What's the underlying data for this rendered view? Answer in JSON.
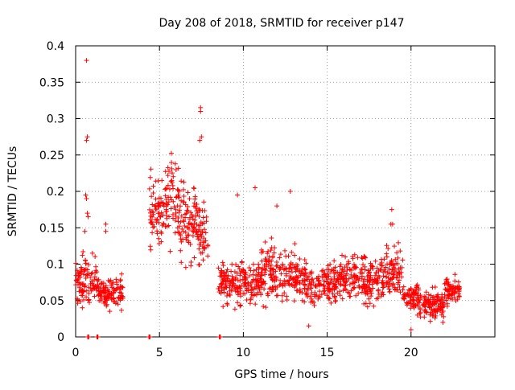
{
  "chart_data": {
    "type": "scatter",
    "title": "Day 208 of 2018, SRMTID for receiver p147",
    "xlabel": "GPS time / hours",
    "ylabel": "SRMTID / TECUs",
    "xlim": [
      0,
      25
    ],
    "ylim": [
      0,
      0.4
    ],
    "grid": true,
    "marker": "+",
    "color": "#ff0000",
    "x_ticks": [
      0,
      5,
      10,
      15,
      20
    ],
    "x_tick_labels": [
      "0",
      "5",
      "10",
      "15",
      "20"
    ],
    "y_ticks": [
      0,
      0.05,
      0.1,
      0.15,
      0.2,
      0.25,
      0.3,
      0.35,
      0.4
    ],
    "y_tick_labels": [
      "0",
      "0.05",
      "0.1",
      "0.15",
      "0.2",
      "0.25",
      "0.3",
      "0.35",
      "0.4"
    ],
    "outliers": [
      [
        0.65,
        0.38
      ],
      [
        0.65,
        0.27
      ],
      [
        0.7,
        0.275
      ],
      [
        0.6,
        0.195
      ],
      [
        0.65,
        0.19
      ],
      [
        0.7,
        0.17
      ],
      [
        0.75,
        0.165
      ],
      [
        0.55,
        0.145
      ],
      [
        1.0,
        0.115
      ],
      [
        1.8,
        0.155
      ],
      [
        1.8,
        0.145
      ],
      [
        7.45,
        0.315
      ],
      [
        7.45,
        0.31
      ],
      [
        7.5,
        0.275
      ],
      [
        7.4,
        0.27
      ],
      [
        10.7,
        0.205
      ],
      [
        9.65,
        0.195
      ],
      [
        12.0,
        0.18
      ],
      [
        12.8,
        0.2
      ],
      [
        18.85,
        0.175
      ],
      [
        18.8,
        0.155
      ],
      [
        18.9,
        0.155
      ],
      [
        20.0,
        0.01
      ],
      [
        21.9,
        0.02
      ],
      [
        13.9,
        0.015
      ]
    ],
    "zero_points": [
      0.75,
      1.3,
      4.4,
      8.6
    ],
    "segments": [
      {
        "start": 0.0,
        "end": 1.3,
        "mean": 0.078,
        "spread": 0.032
      },
      {
        "start": 1.3,
        "end": 2.9,
        "mean": 0.06,
        "spread": 0.02
      },
      {
        "start": 4.4,
        "end": 5.2,
        "mean": 0.17,
        "spread": 0.045
      },
      {
        "start": 5.2,
        "end": 6.2,
        "mean": 0.18,
        "spread": 0.055
      },
      {
        "start": 6.2,
        "end": 7.2,
        "mean": 0.16,
        "spread": 0.055
      },
      {
        "start": 7.2,
        "end": 7.9,
        "mean": 0.14,
        "spread": 0.05
      },
      {
        "start": 8.5,
        "end": 11.0,
        "mean": 0.075,
        "spread": 0.028
      },
      {
        "start": 11.0,
        "end": 13.5,
        "mean": 0.085,
        "spread": 0.035
      },
      {
        "start": 13.5,
        "end": 15.5,
        "mean": 0.07,
        "spread": 0.028
      },
      {
        "start": 15.5,
        "end": 18.5,
        "mean": 0.08,
        "spread": 0.03
      },
      {
        "start": 18.5,
        "end": 19.5,
        "mean": 0.09,
        "spread": 0.035
      },
      {
        "start": 19.5,
        "end": 20.5,
        "mean": 0.055,
        "spread": 0.02
      },
      {
        "start": 20.5,
        "end": 22.0,
        "mean": 0.045,
        "spread": 0.018
      },
      {
        "start": 22.0,
        "end": 22.9,
        "mean": 0.065,
        "spread": 0.022
      }
    ],
    "density_per_hour": 75
  }
}
